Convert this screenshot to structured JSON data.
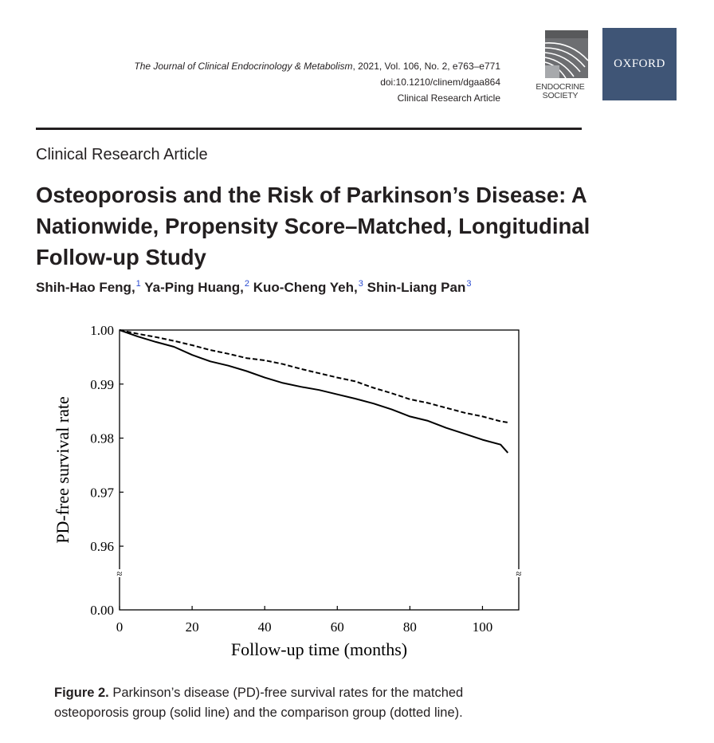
{
  "header": {
    "journal_name": "The Journal of Clinical Endocrinology & Metabolism",
    "journal_details": ", 2021, Vol. 106, No. 2, e763–e771",
    "doi": "doi:10.1210/clinem/dgaa864",
    "article_type": "Clinical Research Article",
    "logo_endocrine_line1": "ENDOCRINE",
    "logo_endocrine_line2": "SOCIETY",
    "logo_oxford": "OXFORD"
  },
  "article": {
    "section_label": "Clinical Research Article",
    "title": "Osteoporosis and the Risk of Parkinson’s Disease: A Nationwide, Propensity Score–Matched, Longitudinal Follow-up Study",
    "authors": [
      {
        "name": "Shih-Hao Feng,",
        "affiliation": "1"
      },
      {
        "name": "Ya-Ping Huang,",
        "affiliation": "2"
      },
      {
        "name": "Kuo-Cheng Yeh,",
        "affiliation": "3"
      },
      {
        "name": "Shin-Liang Pan",
        "affiliation": "3"
      }
    ]
  },
  "chart_data": {
    "type": "line",
    "xlabel": "Follow-up time (months)",
    "ylabel": "PD-free survival  rate",
    "xlim": [
      0,
      110
    ],
    "ylim": [
      0.955,
      1.0
    ],
    "x_ticks": [
      0,
      20,
      40,
      60,
      80,
      100
    ],
    "x_tick_labels": [
      "0",
      "20",
      "40",
      "60",
      "80",
      "100"
    ],
    "y_ticks": [
      1.0,
      0.99,
      0.98,
      0.97,
      0.96
    ],
    "y_tick_labels": [
      "1.00",
      "0.99",
      "0.98",
      "0.97",
      "0.96"
    ],
    "y_bottom_label": "0.00",
    "axis_break_symbol": "≈",
    "grid": false,
    "series": [
      {
        "name": "Osteoporosis group (solid line)",
        "style": "solid",
        "x": [
          0,
          5,
          10,
          15,
          20,
          25,
          30,
          35,
          40,
          45,
          50,
          55,
          60,
          65,
          70,
          75,
          80,
          85,
          90,
          95,
          100,
          105,
          107
        ],
        "values": [
          1.0,
          0.9988,
          0.9978,
          0.9969,
          0.9954,
          0.9942,
          0.9934,
          0.9924,
          0.9912,
          0.9902,
          0.9895,
          0.9889,
          0.9881,
          0.9873,
          0.9864,
          0.9853,
          0.984,
          0.9832,
          0.9819,
          0.9808,
          0.9797,
          0.9788,
          0.9773
        ]
      },
      {
        "name": "Comparison group (dotted line)",
        "style": "dashed",
        "x": [
          0,
          5,
          10,
          15,
          20,
          25,
          30,
          35,
          40,
          45,
          50,
          55,
          60,
          65,
          70,
          75,
          80,
          85,
          90,
          95,
          100,
          105,
          107
        ],
        "values": [
          1.0,
          0.9993,
          0.9987,
          0.998,
          0.9972,
          0.9963,
          0.9956,
          0.9948,
          0.9944,
          0.9937,
          0.9928,
          0.992,
          0.9912,
          0.9905,
          0.9893,
          0.9883,
          0.9872,
          0.9865,
          0.9856,
          0.9847,
          0.984,
          0.9831,
          0.9829
        ]
      }
    ]
  },
  "caption": {
    "label": "Figure 2.",
    "text": " Parkinson’s disease (PD)-free survival rates for the matched osteoporosis group (solid line) and the comparison group (dotted line)."
  }
}
